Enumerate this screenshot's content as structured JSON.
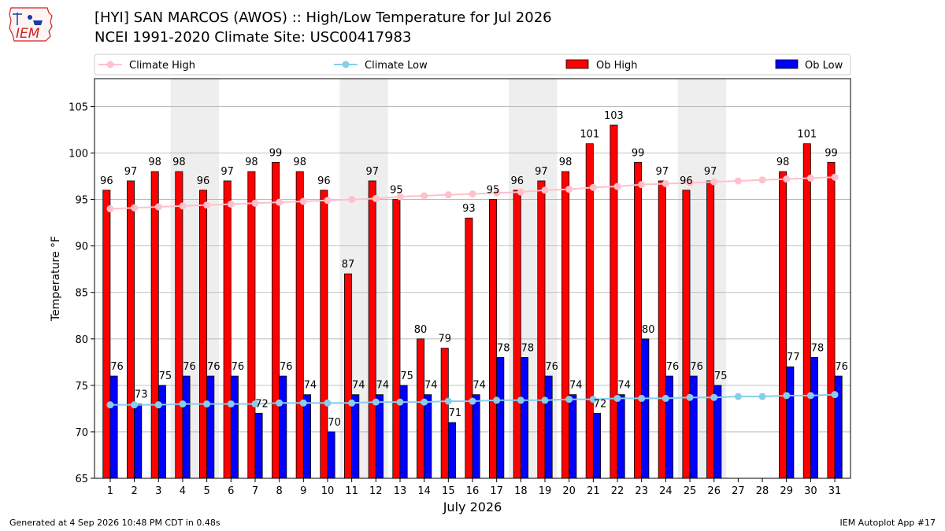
{
  "title_line1": "[HYI] SAN MARCOS (AWOS) :: High/Low Temperature for Jul 2026",
  "title_line2": "NCEI 1991-2020 Climate Site: USC00417983",
  "logo_text": "IEM",
  "footer_left": "Generated at 4 Sep 2026 10:48 PM CDT in 0.48s",
  "footer_right": "IEM Autoplot App #17",
  "colors": {
    "ob_high": "#ff0000",
    "ob_low": "#0000ff",
    "climate_high": "#ffc0cb",
    "climate_low": "#87ceeb",
    "weekend_shade": "#eeeeee",
    "grid": "#b0b0b0"
  },
  "chart_data": {
    "type": "bar",
    "xlabel": "July 2026",
    "ylabel": "Temperature °F",
    "ylim": [
      65,
      108
    ],
    "yticks": [
      65,
      70,
      75,
      80,
      85,
      90,
      95,
      100,
      105
    ],
    "grid": "horizontal",
    "legend_placement": "top",
    "categories": [
      1,
      2,
      3,
      4,
      5,
      6,
      7,
      8,
      9,
      10,
      11,
      12,
      13,
      14,
      15,
      16,
      17,
      18,
      19,
      20,
      21,
      22,
      23,
      24,
      25,
      26,
      27,
      28,
      29,
      30,
      31
    ],
    "shaded_weekends": [
      [
        4,
        5
      ],
      [
        11,
        12
      ],
      [
        18,
        19
      ],
      [
        25,
        26
      ]
    ],
    "series": [
      {
        "name": "Climate High",
        "type": "line",
        "values": [
          94.0,
          94.1,
          94.2,
          94.3,
          94.4,
          94.5,
          94.6,
          94.7,
          94.8,
          94.9,
          95.0,
          95.1,
          95.3,
          95.4,
          95.5,
          95.6,
          95.7,
          95.8,
          96.0,
          96.1,
          96.3,
          96.4,
          96.6,
          96.7,
          96.8,
          96.9,
          97.0,
          97.1,
          97.2,
          97.3,
          97.4
        ]
      },
      {
        "name": "Climate Low",
        "type": "line",
        "values": [
          72.9,
          72.9,
          72.9,
          73.0,
          73.0,
          73.0,
          73.0,
          73.1,
          73.1,
          73.1,
          73.1,
          73.2,
          73.2,
          73.2,
          73.3,
          73.3,
          73.4,
          73.4,
          73.4,
          73.5,
          73.5,
          73.6,
          73.6,
          73.6,
          73.7,
          73.7,
          73.8,
          73.8,
          73.9,
          73.9,
          74.0
        ]
      },
      {
        "name": "Ob High",
        "type": "bar",
        "values": [
          96,
          97,
          98,
          98,
          96,
          97,
          98,
          99,
          98,
          96,
          87,
          97,
          95,
          80,
          79,
          93,
          95,
          96,
          97,
          98,
          101,
          103,
          99,
          97,
          96,
          97,
          null,
          null,
          98,
          101,
          99
        ]
      },
      {
        "name": "Ob Low",
        "type": "bar",
        "values": [
          76,
          73,
          75,
          76,
          76,
          76,
          72,
          76,
          74,
          70,
          74,
          74,
          75,
          74,
          71,
          74,
          78,
          78,
          76,
          74,
          72,
          74,
          80,
          76,
          76,
          75,
          null,
          null,
          77,
          78,
          76
        ]
      }
    ]
  }
}
